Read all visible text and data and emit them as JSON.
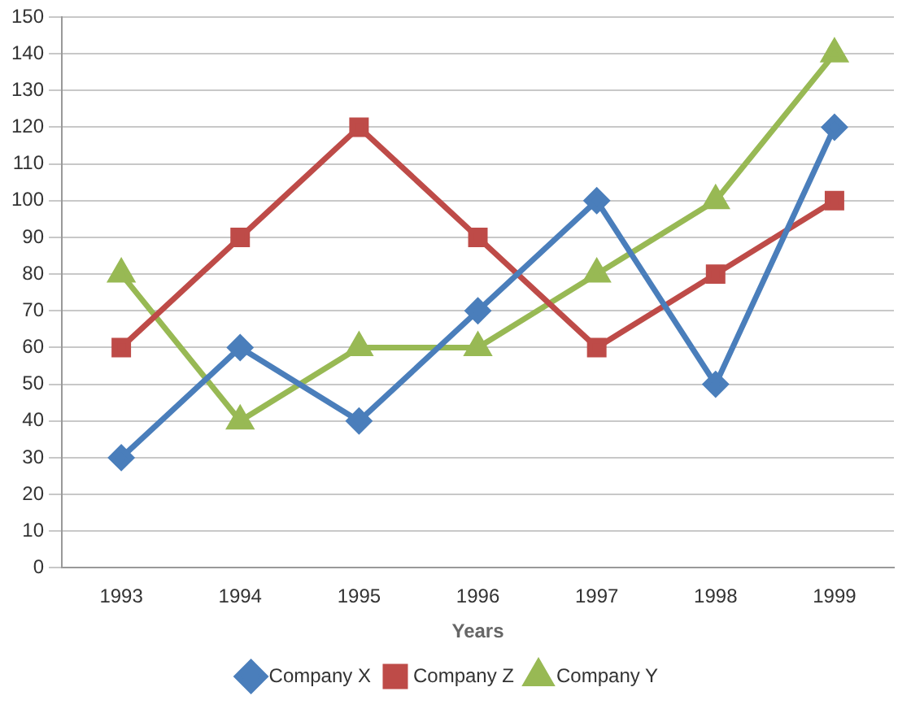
{
  "chart_data": {
    "type": "line",
    "xlabel": "Years",
    "categories": [
      "1993",
      "1994",
      "1995",
      "1996",
      "1997",
      "1998",
      "1999"
    ],
    "series": [
      {
        "name": "Company X",
        "color": "#4a7ebb",
        "marker": "diamond",
        "values": [
          30,
          60,
          40,
          70,
          100,
          50,
          120
        ]
      },
      {
        "name": "Company Z",
        "color": "#be4b48",
        "marker": "square",
        "values": [
          60,
          90,
          120,
          90,
          60,
          80,
          100
        ]
      },
      {
        "name": "Company Y",
        "color": "#98b954",
        "marker": "triangle",
        "values": [
          80,
          40,
          60,
          60,
          80,
          100,
          140
        ]
      }
    ],
    "ylim": [
      0,
      150
    ],
    "yticks": [
      0,
      10,
      20,
      30,
      40,
      50,
      60,
      70,
      80,
      90,
      100,
      110,
      120,
      130,
      140,
      150
    ],
    "grid": "y",
    "legend": "bottom",
    "line_style": "solid"
  }
}
